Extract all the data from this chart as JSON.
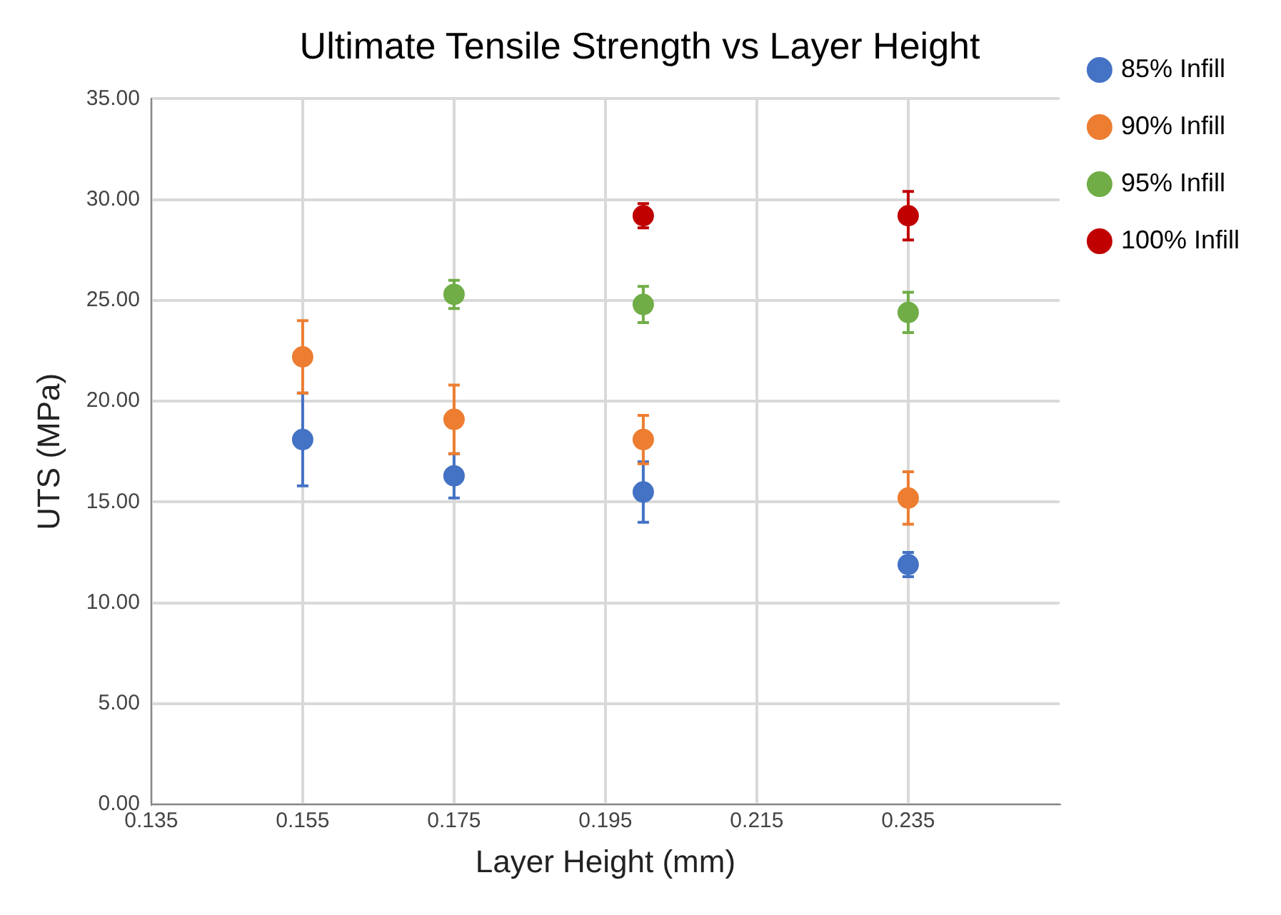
{
  "chart_data": {
    "type": "scatter",
    "title": "Ultimate Tensile Strength vs Layer Height",
    "xlabel": "Layer Height (mm)",
    "ylabel": "UTS (MPa)",
    "xlim": [
      0.135,
      0.255
    ],
    "xticks": [
      0.135,
      0.155,
      0.175,
      0.195,
      0.215,
      0.235
    ],
    "ylim": [
      0,
      35
    ],
    "yticks": [
      {
        "value": 0,
        "label": "0.00"
      },
      {
        "value": 5,
        "label": "5.00"
      },
      {
        "value": 10,
        "label": "10.00"
      },
      {
        "value": 15,
        "label": "15.00"
      },
      {
        "value": 20,
        "label": "20.00"
      },
      {
        "value": 25,
        "label": "25.00"
      },
      {
        "value": 30,
        "label": "30.00"
      },
      {
        "value": 35,
        "label": "35.00"
      }
    ],
    "grid": true,
    "legend": "right",
    "marker": "circle",
    "series": [
      {
        "name": "85% Infill",
        "color": "#4472c4",
        "x": [
          0.155,
          0.175,
          0.2,
          0.235
        ],
        "values": [
          18.1,
          16.3,
          15.5,
          11.9
        ],
        "errors": [
          2.3,
          1.1,
          1.5,
          0.6
        ]
      },
      {
        "name": "90% Infill",
        "color": "#ed7d31",
        "x": [
          0.155,
          0.175,
          0.2,
          0.235
        ],
        "values": [
          22.2,
          19.1,
          18.1,
          15.2
        ],
        "errors": [
          1.8,
          1.7,
          1.2,
          1.3
        ]
      },
      {
        "name": "95% Infill",
        "color": "#70ad47",
        "x": [
          0.175,
          0.2,
          0.235
        ],
        "values": [
          25.3,
          24.8,
          24.4
        ],
        "errors": [
          0.7,
          0.9,
          1.0
        ]
      },
      {
        "name": "100% Infill",
        "color": "#c00000",
        "x": [
          0.2,
          0.235
        ],
        "values": [
          29.2,
          29.2
        ],
        "errors": [
          0.6,
          1.2
        ]
      }
    ]
  }
}
